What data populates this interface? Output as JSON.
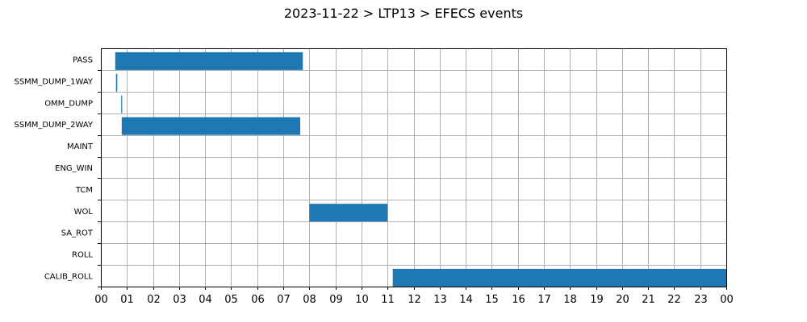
{
  "chart_data": {
    "type": "bar",
    "orientation": "horizontal-timeline",
    "title": "2023-11-22 > LTP13 > EFECS events",
    "xlabel": "",
    "ylabel": "",
    "x_unit": "hours",
    "xlim": [
      0,
      24
    ],
    "grid": true,
    "bar_color": "#1f77b4",
    "x_ticks": [
      "00",
      "01",
      "02",
      "03",
      "04",
      "05",
      "06",
      "07",
      "08",
      "09",
      "10",
      "11",
      "12",
      "13",
      "14",
      "15",
      "16",
      "17",
      "18",
      "19",
      "20",
      "21",
      "22",
      "23",
      "00"
    ],
    "categories": [
      "PASS",
      "SSMM_DUMP_1WAY",
      "OMM_DUMP",
      "SSMM_DUMP_2WAY",
      "MAINT",
      "ENG_WIN",
      "TCM",
      "WOL",
      "SA_ROT",
      "ROLL",
      "CALIB_ROLL"
    ],
    "events": [
      {
        "category": "PASS",
        "start": 0.55,
        "end": 7.75
      },
      {
        "category": "SSMM_DUMP_1WAY",
        "start": 0.58,
        "end": 0.63
      },
      {
        "category": "OMM_DUMP",
        "start": 0.78,
        "end": 0.8
      },
      {
        "category": "SSMM_DUMP_2WAY",
        "start": 0.8,
        "end": 7.65
      },
      {
        "category": "WOL",
        "start": 8.0,
        "end": 11.0
      },
      {
        "category": "CALIB_ROLL",
        "start": 11.2,
        "end": 24.0
      }
    ]
  }
}
